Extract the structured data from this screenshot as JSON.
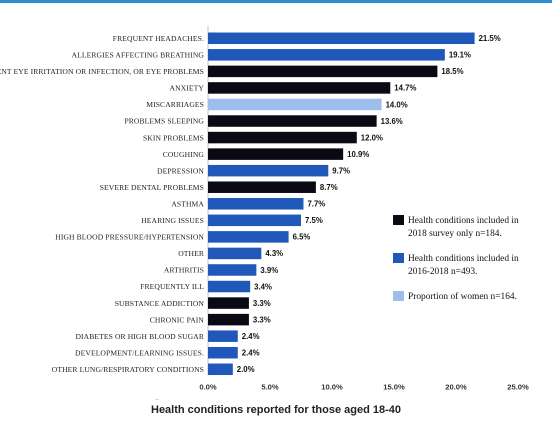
{
  "chart_data": {
    "type": "bar",
    "orientation": "horizontal",
    "title": "",
    "caption": "Health conditions reported for those aged 18-40",
    "xlim": [
      0,
      25
    ],
    "x_ticks": [
      "0.0%",
      "5.0%",
      "10.0%",
      "15.0%",
      "20.0%",
      "25.0%"
    ],
    "grid": false,
    "legend_position": "right",
    "series": [
      {
        "key": "2018",
        "name": "Health conditions included in 2018 survey only n=184.",
        "color": "#0a0a14"
      },
      {
        "key": "2016_2018",
        "name": "Health conditions included in 2016-2018 n=493.",
        "color": "#1f58b8"
      },
      {
        "key": "women",
        "name": "Proportion of women n=164.",
        "color": "#9dbdea"
      }
    ],
    "categories": [
      {
        "label": "FREQUENT HEADACHES.",
        "value": 21.5,
        "value_label": "21.5%",
        "series": "2016_2018"
      },
      {
        "label": "ALLERGIES AFFECTING BREATHING",
        "value": 19.1,
        "value_label": "19.1%",
        "series": "2016_2018"
      },
      {
        "label": "FREQUENT EYE IRRITATION OR INFECTION, OR EYE PROBLEMS",
        "value": 18.5,
        "value_label": "18.5%",
        "series": "2018"
      },
      {
        "label": "ANXIETY",
        "value": 14.7,
        "value_label": "14.7%",
        "series": "2018"
      },
      {
        "label": "MISCARRIAGES",
        "value": 14.0,
        "value_label": "14.0%",
        "series": "women"
      },
      {
        "label": "PROBLEMS SLEEPING",
        "value": 13.6,
        "value_label": "13.6%",
        "series": "2018"
      },
      {
        "label": "SKIN PROBLEMS",
        "value": 12.0,
        "value_label": "12.0%",
        "series": "2018"
      },
      {
        "label": "COUGHING",
        "value": 10.9,
        "value_label": "10.9%",
        "series": "2018"
      },
      {
        "label": "DEPRESSION",
        "value": 9.7,
        "value_label": "9.7%",
        "series": "2016_2018"
      },
      {
        "label": "SEVERE DENTAL PROBLEMS",
        "value": 8.7,
        "value_label": "8.7%",
        "series": "2018"
      },
      {
        "label": "ASTHMA",
        "value": 7.7,
        "value_label": "7.7%",
        "series": "2016_2018"
      },
      {
        "label": "HEARING ISSUES",
        "value": 7.5,
        "value_label": "7.5%",
        "series": "2016_2018"
      },
      {
        "label": "HIGH BLOOD PRESSURE/HYPERTENSION",
        "value": 6.5,
        "value_label": "6.5%",
        "series": "2016_2018"
      },
      {
        "label": "OTHER",
        "value": 4.3,
        "value_label": "4.3%",
        "series": "2016_2018"
      },
      {
        "label": "ARTHRITIS",
        "value": 3.9,
        "value_label": "3.9%",
        "series": "2016_2018"
      },
      {
        "label": "FREQUENTLY ILL",
        "value": 3.4,
        "value_label": "3.4%",
        "series": "2016_2018"
      },
      {
        "label": "SUBSTANCE ADDICTION",
        "value": 3.3,
        "value_label": "3.3%",
        "series": "2018"
      },
      {
        "label": "CHRONIC PAIN",
        "value": 3.3,
        "value_label": "3.3%",
        "series": "2018"
      },
      {
        "label": "DIABETES OR HIGH BLOOD SUGAR",
        "value": 2.4,
        "value_label": "2.4%",
        "series": "2016_2018"
      },
      {
        "label": "DEVELOPMENT/LEARNING ISSUES.",
        "value": 2.4,
        "value_label": "2.4%",
        "series": "2016_2018"
      },
      {
        "label": "OTHER LUNG/RESPIRATORY CONDITIONS",
        "value": 2.0,
        "value_label": "2.0%",
        "series": "2016_2018"
      }
    ]
  }
}
